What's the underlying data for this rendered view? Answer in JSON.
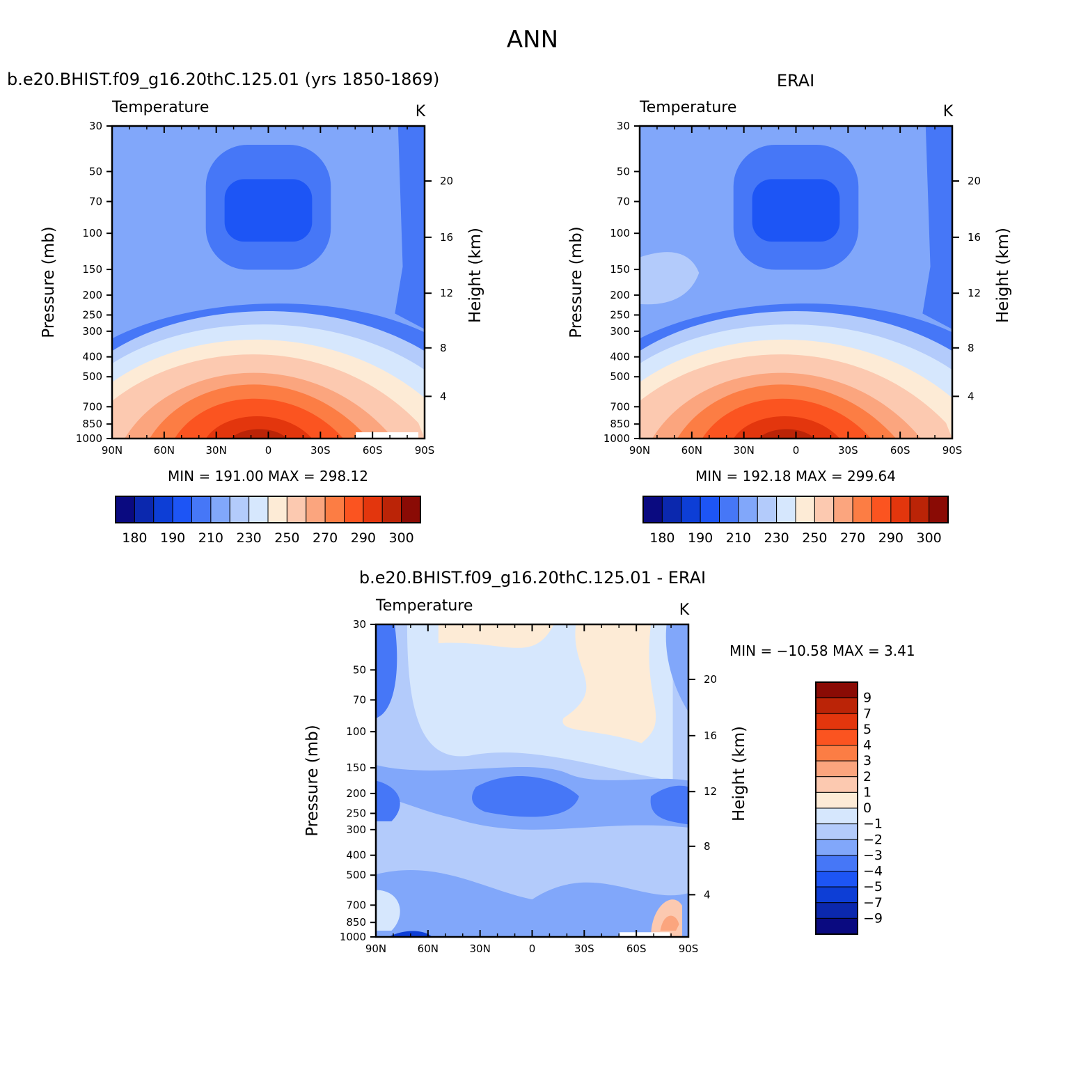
{
  "figure": {
    "title": "ANN"
  },
  "panels": [
    {
      "title": "b.e20.BHIST.f09_g16.20thC.125.01 (yrs 1850-1869)",
      "variable": "Temperature",
      "units": "K",
      "min_max": "MIN = 191.00   MAX = 298.12"
    },
    {
      "title": "ERAI",
      "variable": "Temperature",
      "units": "K",
      "min_max": "MIN = 192.18   MAX = 299.64"
    },
    {
      "title": "b.e20.BHIST.f09_g16.20thC.125.01 - ERAI",
      "variable": "Temperature",
      "units": "K",
      "min_max": "MIN = −10.58   MAX =    3.41"
    }
  ],
  "axes": {
    "y_label": "Pressure (mb)",
    "y2_label": "Height (km)",
    "x_ticks": [
      "90N",
      "60N",
      "30N",
      "0",
      "30S",
      "60S",
      "90S"
    ],
    "y_ticks": [
      "30",
      "50",
      "70",
      "100",
      "150",
      "200",
      "250",
      "300",
      "400",
      "500",
      "700",
      "850",
      "1000"
    ],
    "y2_ticks": [
      "20",
      "16",
      "12",
      "8",
      "4"
    ]
  },
  "colorbars": {
    "temperature": {
      "labels": [
        "180",
        "190",
        "210",
        "230",
        "250",
        "270",
        "290",
        "300"
      ],
      "colors": [
        "#0a0a80",
        "#0b28ae",
        "#0d3ed6",
        "#1d55f5",
        "#4677f7",
        "#81a7fa",
        "#b3cbfb",
        "#d6e7fd",
        "#fdebd6",
        "#fcc9b0",
        "#fba57e",
        "#fc7d44",
        "#fb5420",
        "#e3360d",
        "#bb2407",
        "#8a0b05"
      ]
    },
    "difference": {
      "labels": [
        "9",
        "7",
        "5",
        "4",
        "3",
        "2",
        "1",
        "0",
        "−1",
        "−2",
        "−3",
        "−4",
        "−5",
        "−7",
        "−9"
      ],
      "colors": [
        "#8a0b05",
        "#bb2407",
        "#e3360d",
        "#fb5420",
        "#fc7d44",
        "#fba57e",
        "#fcc9b0",
        "#fdebd6",
        "#d6e7fd",
        "#b3cbfb",
        "#81a7fa",
        "#4677f7",
        "#1d55f5",
        "#0d3ed6",
        "#0b28ae",
        "#0a0a80"
      ]
    }
  },
  "chart_data": [
    {
      "type": "contour",
      "title": "b.e20.BHIST.f09_g16.20thC.125.01 (yrs 1850-1869)",
      "variable": "Temperature",
      "units": "K",
      "xlabel": "",
      "ylabel": "Pressure (mb)",
      "y2label": "Height (km)",
      "x": [
        "90N",
        "60N",
        "30N",
        "0",
        "30S",
        "60S",
        "90S"
      ],
      "pressure_levels": [
        30,
        50,
        70,
        100,
        150,
        200,
        250,
        300,
        400,
        500,
        700,
        850,
        1000
      ],
      "min": 191.0,
      "max": 298.12
    },
    {
      "type": "contour",
      "title": "ERAI",
      "variable": "Temperature",
      "units": "K",
      "xlabel": "",
      "ylabel": "Pressure (mb)",
      "y2label": "Height (km)",
      "x": [
        "90N",
        "60N",
        "30N",
        "0",
        "30S",
        "60S",
        "90S"
      ],
      "pressure_levels": [
        30,
        50,
        70,
        100,
        150,
        200,
        250,
        300,
        400,
        500,
        700,
        850,
        1000
      ],
      "min": 192.18,
      "max": 299.64
    },
    {
      "type": "contour",
      "title": "b.e20.BHIST.f09_g16.20thC.125.01 - ERAI",
      "variable": "Temperature",
      "units": "K",
      "xlabel": "",
      "ylabel": "Pressure (mb)",
      "y2label": "Height (km)",
      "x": [
        "90N",
        "60N",
        "30N",
        "0",
        "30S",
        "60S",
        "90S"
      ],
      "pressure_levels": [
        30,
        50,
        70,
        100,
        150,
        200,
        250,
        300,
        400,
        500,
        700,
        850,
        1000
      ],
      "min": -10.58,
      "max": 3.41
    }
  ]
}
